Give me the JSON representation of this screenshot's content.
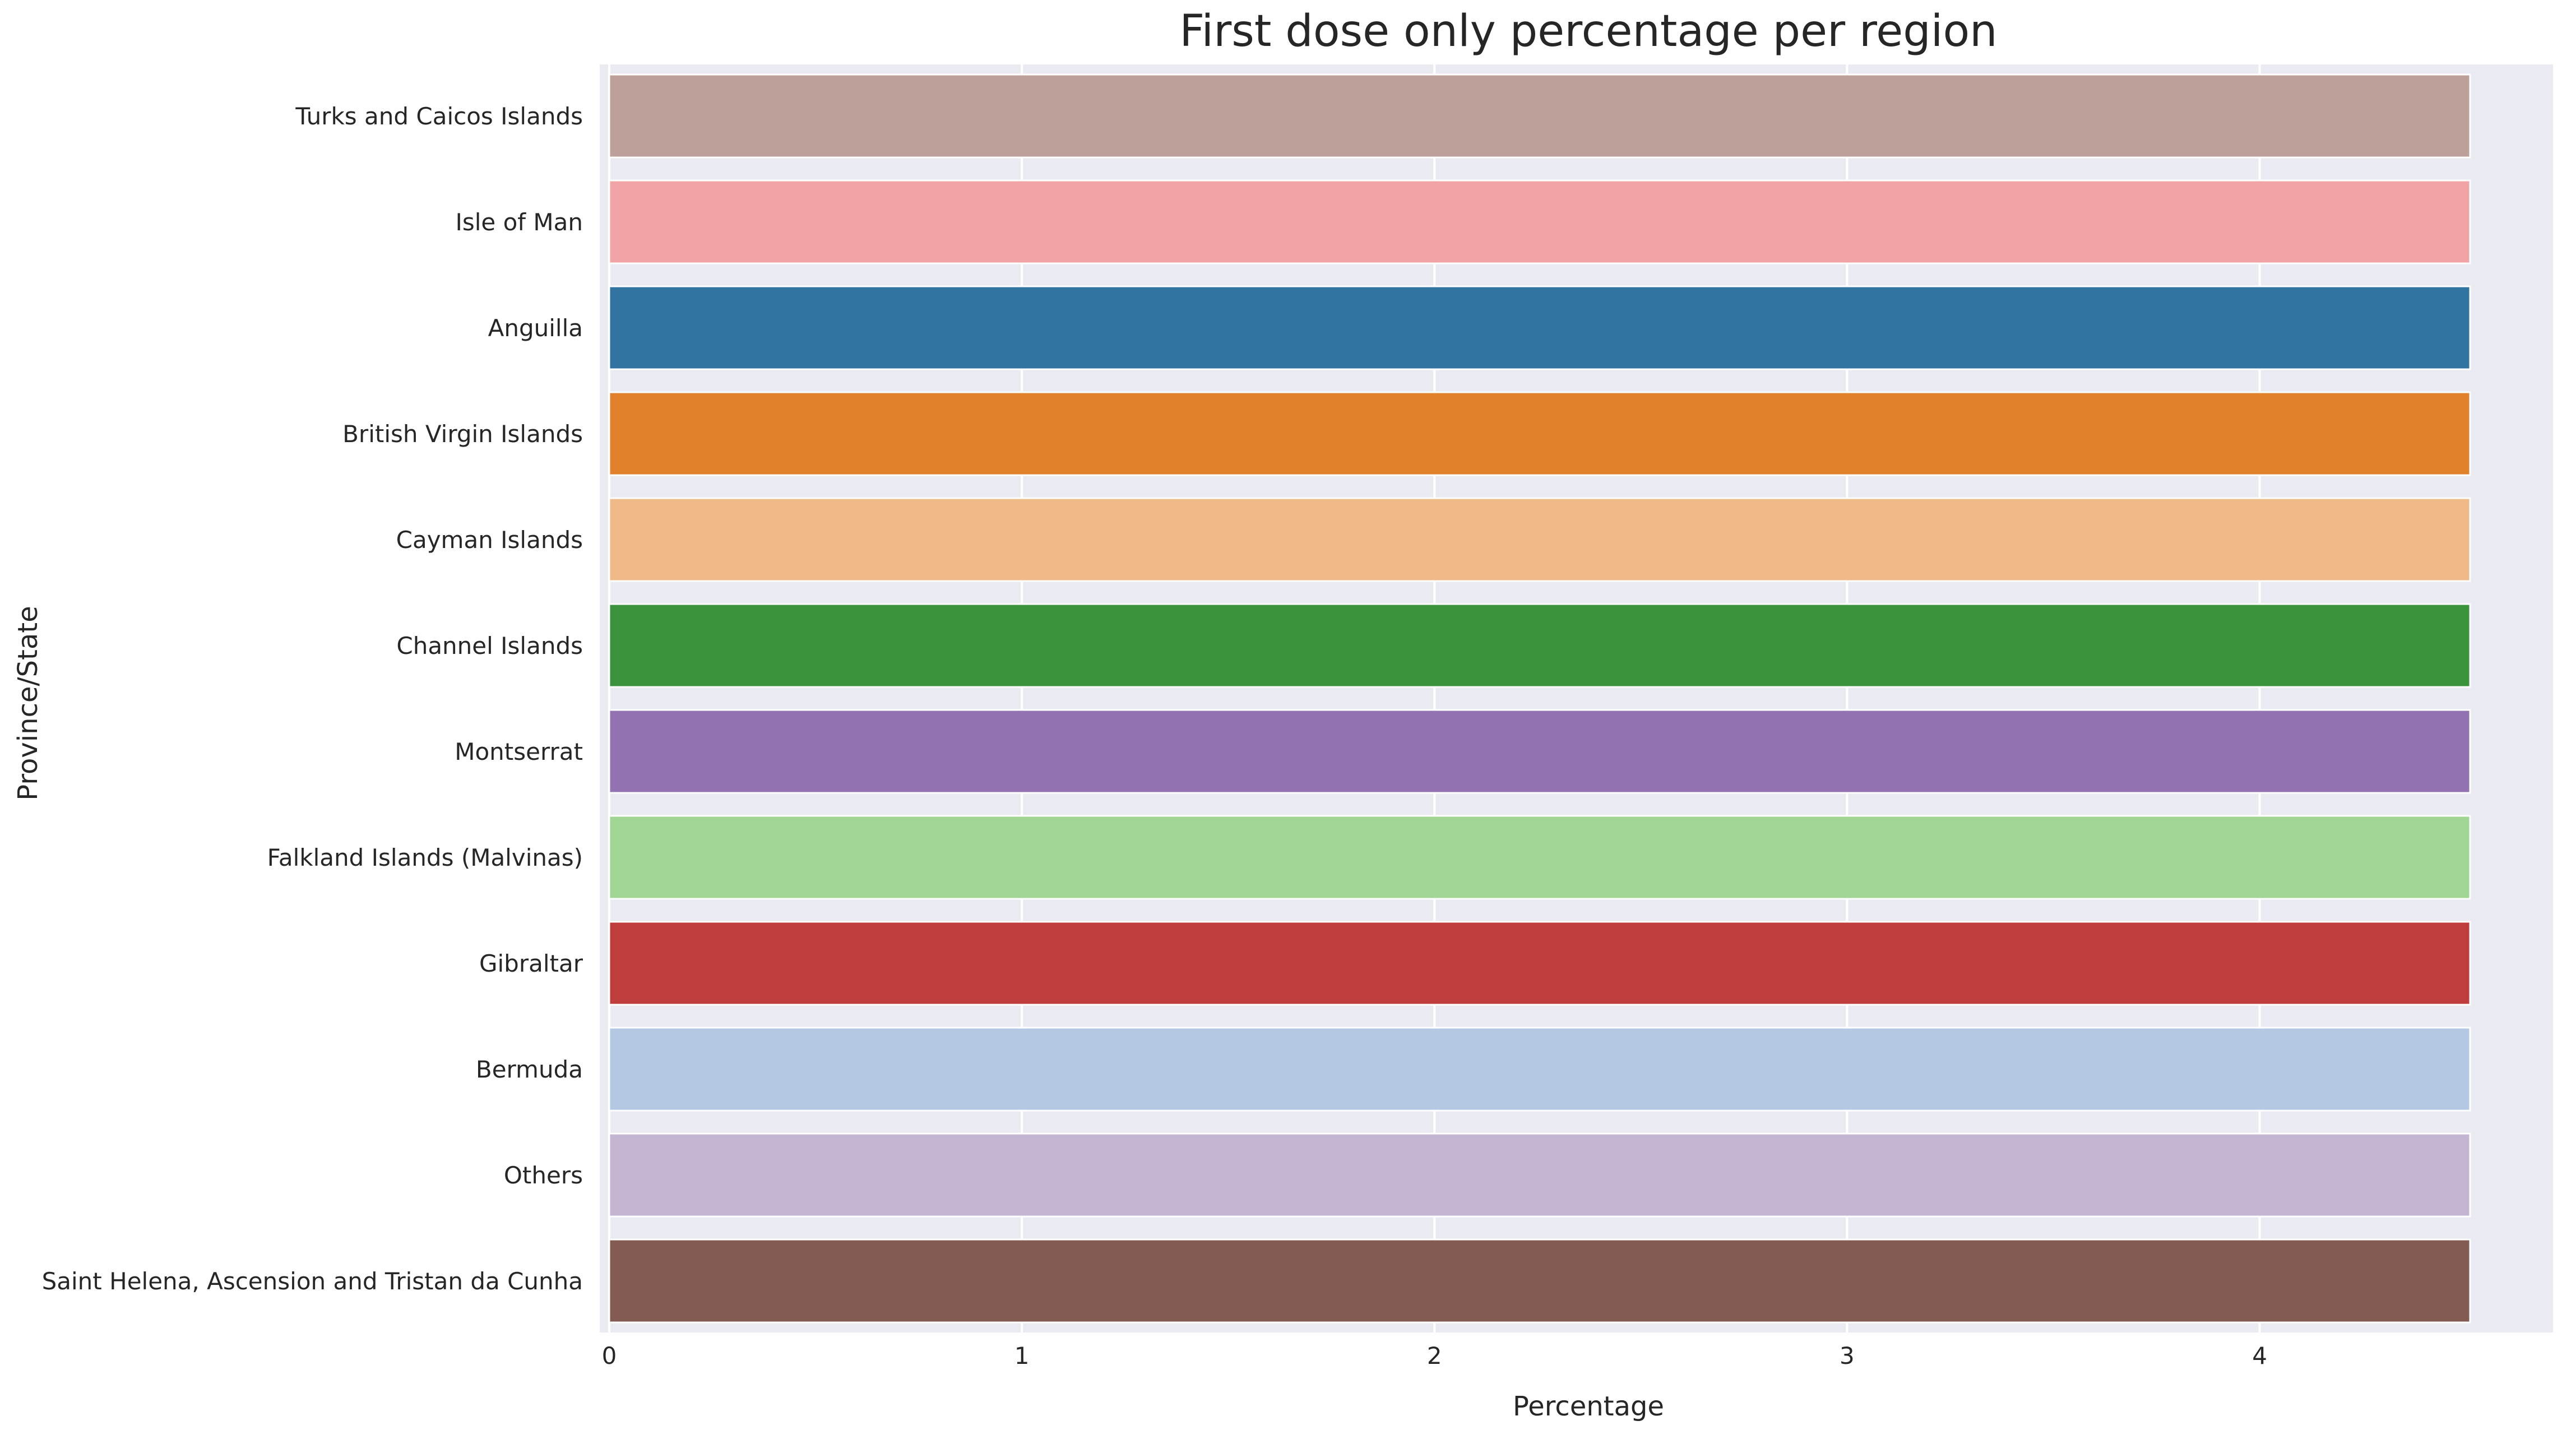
{
  "chart_data": {
    "type": "bar",
    "orientation": "horizontal",
    "title": "First dose only percentage per region",
    "xlabel": "Percentage",
    "ylabel": "Province/State",
    "xlim": [
      0,
      4.73
    ],
    "xticks": [
      0,
      1,
      2,
      3,
      4
    ],
    "grid": true,
    "background": "#eaeaf2",
    "categories": [
      "Turks and Caicos Islands",
      "Isle of Man",
      "Anguilla",
      "British Virgin Islands",
      "Cayman Islands",
      "Channel Islands",
      "Montserrat",
      "Falkland Islands (Malvinas)",
      "Gibraltar",
      "Bermuda",
      "Others",
      "Saint Helena, Ascension and Tristan da Cunha"
    ],
    "values": [
      4.51,
      4.51,
      4.51,
      4.51,
      4.51,
      4.51,
      4.51,
      4.51,
      4.51,
      4.51,
      4.51,
      4.51
    ],
    "colors": [
      "#bca099",
      "#f2a3a5",
      "#3274a1",
      "#e1812c",
      "#efba88",
      "#3a923a",
      "#9372b2",
      "#a0d593",
      "#c03d3e",
      "#b3c8e2",
      "#c4b5d3",
      "#845b53"
    ]
  }
}
